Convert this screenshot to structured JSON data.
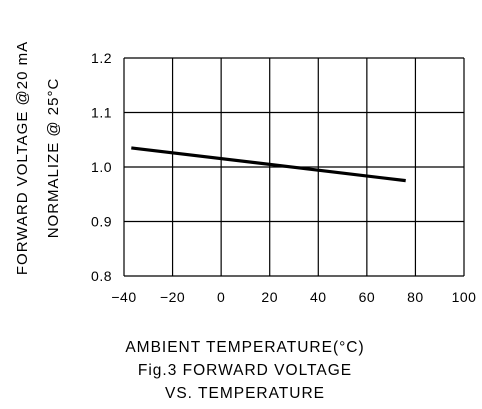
{
  "chart_data": {
    "type": "line",
    "ylabel_line1": "FORWARD VOLTAGE @20 mA",
    "ylabel_line2": "NORMALIZE @ 25°C",
    "xlabel": "AMBIENT TEMPERATURE(°C)",
    "caption_line1": "Fig.3 FORWARD VOLTAGE",
    "caption_line2": "VS. TEMPERATURE",
    "xlim": [
      -40,
      100
    ],
    "ylim": [
      0.8,
      1.2
    ],
    "xticks": [
      -40,
      -20,
      0,
      20,
      40,
      60,
      80,
      100
    ],
    "yticks": [
      0.8,
      0.9,
      1.0,
      1.1,
      1.2
    ],
    "xtick_labels": [
      "−40",
      "−20",
      "0",
      "20",
      "40",
      "60",
      "80",
      "100"
    ],
    "ytick_labels": [
      "0.8",
      "0.9",
      "1.0",
      "1.1",
      "1.2"
    ],
    "grid": true,
    "series": [
      {
        "x": [
          -37,
          76
        ],
        "y": [
          1.035,
          0.975
        ]
      }
    ],
    "line_color": "#000000"
  }
}
